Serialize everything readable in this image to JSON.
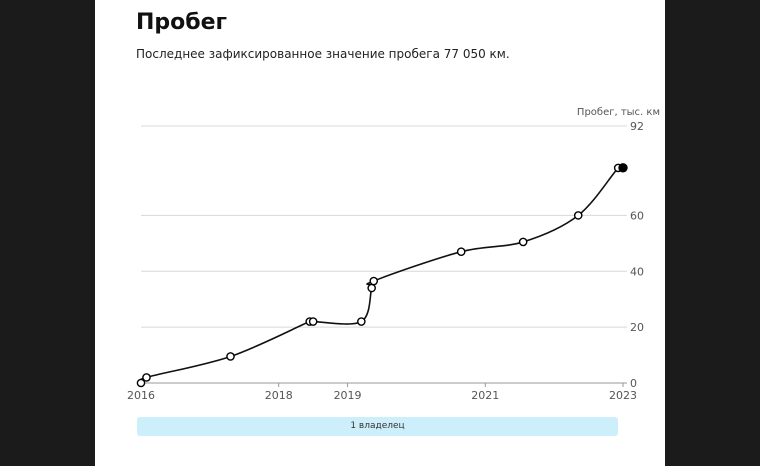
{
  "card": {
    "title": "Пробег",
    "subtitle": "Последнее зафиксированное значение пробега 77 050 км."
  },
  "chart_data": {
    "type": "line",
    "ylabel": "Пробег, тыс. км",
    "ylim": [
      0,
      92
    ],
    "yticks": [
      0,
      20,
      40,
      60,
      92
    ],
    "xticks": [
      {
        "label": "2016",
        "year": 2016.0
      },
      {
        "label": "2018",
        "year": 2018.0
      },
      {
        "label": "2019",
        "year": 2019.0
      },
      {
        "label": "2021",
        "year": 2021.0
      },
      {
        "label": "2023",
        "year": 2023.0
      }
    ],
    "x_range": [
      2016.0,
      2023.0
    ],
    "grid": true,
    "line_color": "#111111",
    "points": [
      {
        "x": 2016.0,
        "y": 0
      },
      {
        "x": 2016.08,
        "y": 2
      },
      {
        "x": 2017.3,
        "y": 9.5
      },
      {
        "x": 2018.45,
        "y": 22
      },
      {
        "x": 2018.5,
        "y": 22
      },
      {
        "x": 2019.2,
        "y": 22
      },
      {
        "x": 2019.35,
        "y": 34
      },
      {
        "x": 2019.38,
        "y": 36.5
      },
      {
        "x": 2020.65,
        "y": 47
      },
      {
        "x": 2021.55,
        "y": 50.5
      },
      {
        "x": 2022.35,
        "y": 60
      },
      {
        "x": 2022.93,
        "y": 77
      },
      {
        "x": 2023.0,
        "y": 77.05,
        "last": true
      }
    ]
  },
  "owners": {
    "label": "1 владелец",
    "color": "#cdeefb"
  }
}
